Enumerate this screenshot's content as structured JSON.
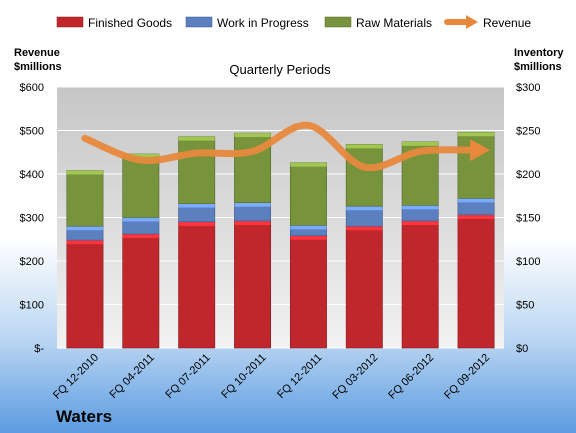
{
  "company": "Waters",
  "chart_data": {
    "type": "bar",
    "stacked": true,
    "title": "Quarterly Periods",
    "categories": [
      "FQ 12-2010",
      "FQ 04-2011",
      "FQ 07-2011",
      "FQ 10-2011",
      "FQ 12-2011",
      "FQ 03-2012",
      "FQ 06-2012",
      "FQ 09-2012"
    ],
    "series": [
      {
        "name": "Finished Goods",
        "axis": "right",
        "color": "#c0272d",
        "values": [
          124,
          131,
          145,
          146,
          129,
          140,
          146,
          153
        ]
      },
      {
        "name": "Work in Progress",
        "axis": "right",
        "color": "#5b7fbf",
        "values": [
          16,
          19,
          21,
          21,
          12,
          23,
          18,
          19
        ]
      },
      {
        "name": "Raw Materials",
        "axis": "right",
        "color": "#77933c",
        "values": [
          64,
          73,
          77,
          80,
          72,
          71,
          73,
          76
        ]
      },
      {
        "name": "Revenue",
        "axis": "left",
        "type": "line",
        "color": "#e7883c",
        "values": [
          482,
          432,
          448,
          452,
          512,
          416,
          452,
          455
        ]
      }
    ],
    "left_axis": {
      "title_line1": "Revenue",
      "title_line2": "$millions",
      "ylim": [
        0,
        600
      ],
      "ticks": [
        "$-",
        "$100",
        "$200",
        "$300",
        "$400",
        "$500",
        "$600"
      ]
    },
    "right_axis": {
      "title_line1": "Inventory",
      "title_line2": "$millions",
      "ylim": [
        0,
        300
      ],
      "ticks": [
        "$0",
        "$50",
        "$100",
        "$150",
        "$200",
        "$250",
        "$300"
      ]
    },
    "grid": true,
    "legend_position": "top"
  }
}
